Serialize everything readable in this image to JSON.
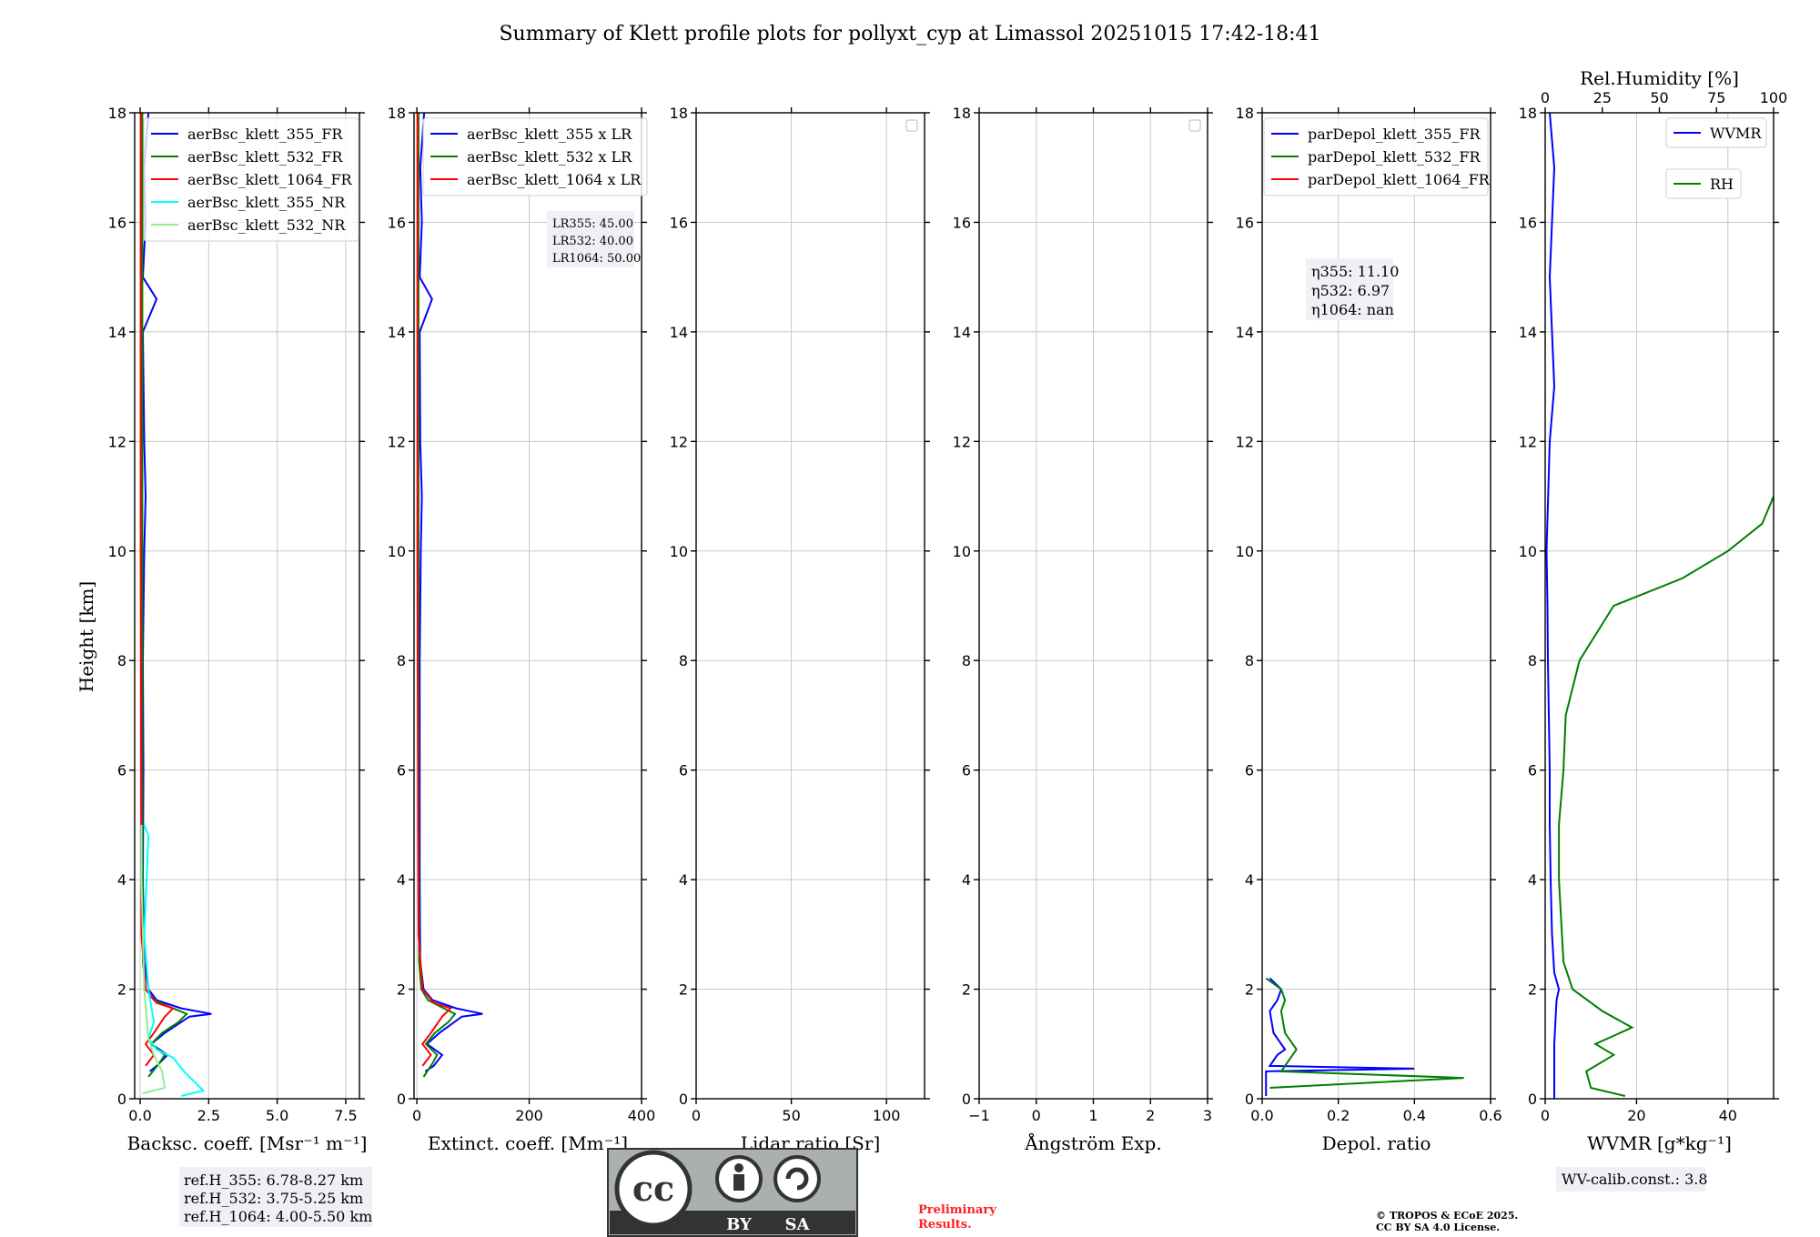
{
  "figure": {
    "title": "Summary of Klett profile plots for pollyxt_cyp at Limassol 20251015 17:42-18:41",
    "ylabel": "Height [km]",
    "ref_heights": [
      "ref.H_355: 6.78-8.27 km",
      "ref.H_532: 3.75-5.25 km",
      "ref.H_1064: 4.00-5.50 km"
    ],
    "wv_calib": "WV-calib.const.: 3.8",
    "preliminary": [
      "Preliminary",
      "Results."
    ],
    "copyright": [
      "© TROPOS & ECoE 2025.",
      "CC BY SA 4.0 License."
    ],
    "license_badge": {
      "by": "BY",
      "sa": "SA",
      "cc": "cc"
    },
    "colors": {
      "blue": "#0000ff",
      "green": "#008000",
      "red": "#ff0000",
      "cyan": "#00ffff",
      "lightgreen": "#90ee90"
    }
  },
  "chart_data": [
    {
      "type": "line",
      "id": "backscatter",
      "xlabel": "Backsc. coeff. [Msr⁻¹ m⁻¹]",
      "xlim": [
        -0.2,
        8
      ],
      "ylim": [
        0,
        18
      ],
      "xticks": [
        0,
        2.5,
        5,
        7.5
      ],
      "xtick_labels": [
        "0.0",
        "2.5",
        "5.0",
        "7.5"
      ],
      "yticks": [
        0,
        2,
        4,
        6,
        8,
        10,
        12,
        14,
        16,
        18
      ],
      "legend": [
        "aerBsc_klett_355_FR",
        "aerBsc_klett_532_FR",
        "aerBsc_klett_1064_FR",
        "aerBsc_klett_355_NR",
        "aerBsc_klett_532_NR"
      ],
      "series": [
        {
          "name": "aerBsc_klett_355_FR",
          "color": "#0000ff",
          "points": [
            [
              0.35,
              0.5
            ],
            [
              0.6,
              0.6
            ],
            [
              1.0,
              0.8
            ],
            [
              0.4,
              1.0
            ],
            [
              0.9,
              1.2
            ],
            [
              1.8,
              1.5
            ],
            [
              2.6,
              1.55
            ],
            [
              1.5,
              1.65
            ],
            [
              0.6,
              1.8
            ],
            [
              0.3,
              2.0
            ],
            [
              0.15,
              2.5
            ],
            [
              0.1,
              4
            ],
            [
              0.12,
              6
            ],
            [
              0.1,
              8
            ],
            [
              0.15,
              10
            ],
            [
              0.2,
              11
            ],
            [
              0.15,
              12
            ],
            [
              0.1,
              14
            ],
            [
              0.6,
              14.6
            ],
            [
              0.1,
              15
            ],
            [
              0.2,
              16
            ],
            [
              0.15,
              17
            ],
            [
              0.3,
              18
            ]
          ]
        },
        {
          "name": "aerBsc_klett_532_FR",
          "color": "#008000",
          "points": [
            [
              0.3,
              0.4
            ],
            [
              0.7,
              0.65
            ],
            [
              0.9,
              0.8
            ],
            [
              0.4,
              1.0
            ],
            [
              0.8,
              1.2
            ],
            [
              1.4,
              1.4
            ],
            [
              1.7,
              1.55
            ],
            [
              1.2,
              1.65
            ],
            [
              0.5,
              1.8
            ],
            [
              0.2,
              2.0
            ],
            [
              0.1,
              2.5
            ],
            [
              0.08,
              5
            ],
            [
              0.08,
              10
            ],
            [
              0.08,
              18
            ]
          ]
        },
        {
          "name": "aerBsc_klett_1064_FR",
          "color": "#ff0000",
          "points": [
            [
              0.2,
              0.6
            ],
            [
              0.5,
              0.8
            ],
            [
              0.2,
              1.0
            ],
            [
              0.5,
              1.2
            ],
            [
              0.9,
              1.5
            ],
            [
              1.2,
              1.65
            ],
            [
              0.6,
              1.75
            ],
            [
              0.2,
              2.0
            ],
            [
              0.05,
              3
            ],
            [
              0.02,
              10
            ],
            [
              0.02,
              18
            ]
          ]
        },
        {
          "name": "aerBsc_klett_355_NR",
          "color": "#00ffff",
          "points": [
            [
              1.5,
              0.05
            ],
            [
              2.3,
              0.15
            ],
            [
              1.6,
              0.5
            ],
            [
              1.2,
              0.75
            ],
            [
              0.6,
              0.9
            ],
            [
              0.3,
              1.1
            ],
            [
              0.5,
              1.4
            ],
            [
              0.3,
              2.0
            ],
            [
              0.15,
              3
            ],
            [
              0.3,
              4.8
            ],
            [
              0.15,
              5
            ]
          ]
        },
        {
          "name": "aerBsc_klett_532_NR",
          "color": "#90ee90",
          "points": [
            [
              0.1,
              0.1
            ],
            [
              0.9,
              0.2
            ],
            [
              0.8,
              0.5
            ],
            [
              0.5,
              0.8
            ],
            [
              0.3,
              1.1
            ],
            [
              0.15,
              2.0
            ],
            [
              0.05,
              4
            ],
            [
              0.05,
              5
            ]
          ]
        }
      ]
    },
    {
      "type": "line",
      "id": "extinction",
      "xlabel": "Extinct. coeff. [Mm⁻¹]",
      "xlim": [
        -5,
        400
      ],
      "ylim": [
        0,
        18
      ],
      "xticks": [
        0,
        200,
        400
      ],
      "xtick_labels": [
        "0",
        "200",
        "400"
      ],
      "yticks": [
        0,
        2,
        4,
        6,
        8,
        10,
        12,
        14,
        16,
        18
      ],
      "legend": [
        "aerBsc_klett_355 x LR",
        "aerBsc_klett_532 x LR",
        "aerBsc_klett_1064 x LR"
      ],
      "lr_note": [
        "LR355: 45.00",
        "LR532: 40.00",
        "LR1064: 50.00"
      ],
      "series": [
        {
          "name": "aerBsc_klett_355 x LR",
          "color": "#0000ff",
          "points": [
            [
              15,
              0.5
            ],
            [
              30,
              0.6
            ],
            [
              45,
              0.8
            ],
            [
              18,
              1.0
            ],
            [
              40,
              1.2
            ],
            [
              80,
              1.5
            ],
            [
              117,
              1.55
            ],
            [
              70,
              1.65
            ],
            [
              28,
              1.8
            ],
            [
              12,
              2.0
            ],
            [
              6,
              2.5
            ],
            [
              5,
              4
            ],
            [
              5,
              6
            ],
            [
              5,
              8
            ],
            [
              7,
              10
            ],
            [
              9,
              11
            ],
            [
              6,
              12
            ],
            [
              5,
              14
            ],
            [
              27,
              14.6
            ],
            [
              5,
              15
            ],
            [
              9,
              16
            ],
            [
              6,
              17
            ],
            [
              13,
              18
            ]
          ]
        },
        {
          "name": "aerBsc_klett_532 x LR",
          "color": "#008000",
          "points": [
            [
              12,
              0.4
            ],
            [
              28,
              0.65
            ],
            [
              36,
              0.8
            ],
            [
              16,
              1.0
            ],
            [
              32,
              1.2
            ],
            [
              56,
              1.4
            ],
            [
              68,
              1.55
            ],
            [
              48,
              1.65
            ],
            [
              20,
              1.8
            ],
            [
              8,
              2.0
            ],
            [
              4,
              2.5
            ],
            [
              3,
              5
            ],
            [
              3,
              10
            ],
            [
              3,
              18
            ]
          ]
        },
        {
          "name": "aerBsc_klett_1064 x LR",
          "color": "#ff0000",
          "points": [
            [
              10,
              0.6
            ],
            [
              25,
              0.8
            ],
            [
              10,
              1.0
            ],
            [
              25,
              1.2
            ],
            [
              45,
              1.5
            ],
            [
              60,
              1.65
            ],
            [
              30,
              1.75
            ],
            [
              10,
              2.0
            ],
            [
              3,
              3
            ],
            [
              1,
              10
            ],
            [
              1,
              18
            ]
          ]
        }
      ]
    },
    {
      "type": "line",
      "id": "lidar_ratio",
      "xlabel": "Lidar ratio [Sr]",
      "xlim": [
        0,
        120
      ],
      "ylim": [
        0,
        18
      ],
      "xticks": [
        0,
        50,
        100
      ],
      "xtick_labels": [
        "0",
        "50",
        "100"
      ],
      "yticks": [
        0,
        2,
        4,
        6,
        8,
        10,
        12,
        14,
        16,
        18
      ],
      "series": []
    },
    {
      "type": "line",
      "id": "angstrom",
      "xlabel": "Ångström Exp.",
      "xlim": [
        -1,
        3
      ],
      "ylim": [
        0,
        18
      ],
      "xticks": [
        -1,
        0,
        1,
        2,
        3
      ],
      "xtick_labels": [
        "−1",
        "0",
        "1",
        "2",
        "3"
      ],
      "yticks": [
        0,
        2,
        4,
        6,
        8,
        10,
        12,
        14,
        16,
        18
      ],
      "series": []
    },
    {
      "type": "line",
      "id": "depol",
      "xlabel": "Depol. ratio",
      "xlim": [
        0,
        0.6
      ],
      "ylim": [
        0,
        18
      ],
      "xticks": [
        0,
        0.2,
        0.4,
        0.6
      ],
      "xtick_labels": [
        "0.0",
        "0.2",
        "0.4",
        "0.6"
      ],
      "yticks": [
        0,
        2,
        4,
        6,
        8,
        10,
        12,
        14,
        16,
        18
      ],
      "legend": [
        "parDepol_klett_355_FR",
        "parDepol_klett_532_FR",
        "parDepol_klett_1064_FR"
      ],
      "eta_note": [
        "η355: 11.10",
        "η532: 6.97",
        "η1064: nan"
      ],
      "series": [
        {
          "name": "parDepol_klett_355_FR",
          "color": "#0000ff",
          "points": [
            [
              0.01,
              0.05
            ],
            [
              0.01,
              0.5
            ],
            [
              0.4,
              0.55
            ],
            [
              0.02,
              0.6
            ],
            [
              0.04,
              0.8
            ],
            [
              0.06,
              0.9
            ],
            [
              0.03,
              1.2
            ],
            [
              0.02,
              1.6
            ],
            [
              0.04,
              1.8
            ],
            [
              0.05,
              2.0
            ],
            [
              0.02,
              2.2
            ]
          ]
        },
        {
          "name": "parDepol_klett_532_FR",
          "color": "#008000",
          "points": [
            [
              0.02,
              0.2
            ],
            [
              0.53,
              0.38
            ],
            [
              0.05,
              0.5
            ],
            [
              0.07,
              0.7
            ],
            [
              0.09,
              0.9
            ],
            [
              0.06,
              1.2
            ],
            [
              0.05,
              1.6
            ],
            [
              0.06,
              1.8
            ],
            [
              0.05,
              2.0
            ],
            [
              0.01,
              2.2
            ]
          ]
        },
        {
          "name": "parDepol_klett_1064_FR",
          "color": "#ff0000",
          "points": []
        }
      ]
    },
    {
      "type": "line",
      "id": "wvmr",
      "xlabel": "WVMR [g*kg⁻¹]",
      "x2label": "Rel.Humidity [%]",
      "xlim": [
        0,
        50
      ],
      "x2lim": [
        0,
        100
      ],
      "ylim": [
        0,
        18
      ],
      "xticks": [
        0,
        20,
        40
      ],
      "xtick_labels": [
        "0",
        "20",
        "40"
      ],
      "x2ticks": [
        0,
        25,
        50,
        75,
        100
      ],
      "x2tick_labels": [
        "0",
        "25",
        "50",
        "75",
        "100"
      ],
      "yticks": [
        0,
        2,
        4,
        6,
        8,
        10,
        12,
        14,
        16,
        18
      ],
      "legend": [
        "WVMR",
        "RH"
      ],
      "series": [
        {
          "name": "WVMR",
          "color": "#0000ff",
          "axis": "x",
          "points": [
            [
              2,
              0
            ],
            [
              2,
              1.0
            ],
            [
              2.5,
              1.8
            ],
            [
              3,
              2.0
            ],
            [
              2,
              2.3
            ],
            [
              1.5,
              3
            ],
            [
              1.2,
              4
            ],
            [
              1.0,
              5
            ],
            [
              1,
              6
            ],
            [
              0.8,
              7
            ],
            [
              0.6,
              8
            ],
            [
              0.5,
              9
            ],
            [
              0.3,
              10
            ],
            [
              1,
              12
            ],
            [
              2,
              13
            ],
            [
              1,
              15
            ],
            [
              2,
              17
            ],
            [
              1,
              18
            ]
          ]
        },
        {
          "name": "RH",
          "color": "#008000",
          "axis": "x2",
          "points": [
            [
              35,
              0.05
            ],
            [
              20,
              0.2
            ],
            [
              18,
              0.5
            ],
            [
              30,
              0.8
            ],
            [
              22,
              1.0
            ],
            [
              38,
              1.3
            ],
            [
              25,
              1.6
            ],
            [
              12,
              2.0
            ],
            [
              8,
              2.5
            ],
            [
              6,
              4
            ],
            [
              6,
              5
            ],
            [
              8,
              6
            ],
            [
              9,
              7
            ],
            [
              15,
              8
            ],
            [
              30,
              9
            ],
            [
              60,
              9.5
            ],
            [
              80,
              10
            ],
            [
              95,
              10.5
            ],
            [
              100,
              11
            ]
          ]
        }
      ]
    }
  ]
}
